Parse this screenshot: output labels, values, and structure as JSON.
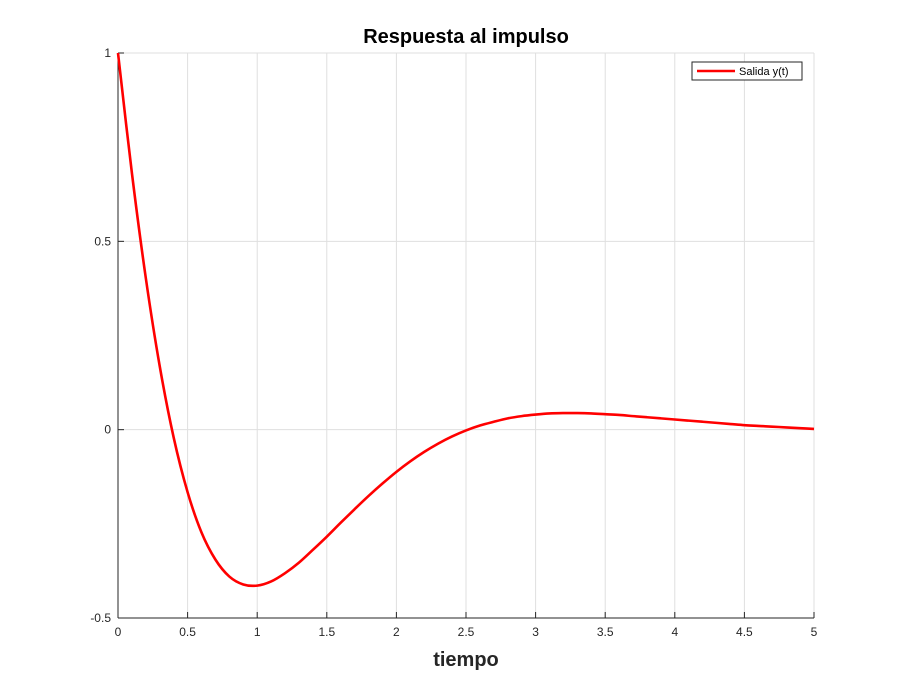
{
  "chart_data": {
    "type": "line",
    "title": "Respuesta al impulso",
    "xlabel": "tiempo",
    "ylabel": "",
    "xlim": [
      0,
      5
    ],
    "ylim": [
      -0.5,
      1
    ],
    "xticks": [
      0,
      0.5,
      1,
      1.5,
      2,
      2.5,
      3,
      3.5,
      4,
      4.5,
      5
    ],
    "xtick_labels": [
      "0",
      "0.5",
      "1",
      "1.5",
      "2",
      "2.5",
      "3",
      "3.5",
      "4",
      "4.5",
      "5"
    ],
    "yticks": [
      -0.5,
      0,
      0.5,
      1
    ],
    "ytick_labels": [
      "-0.5",
      "0",
      "0.5",
      "1"
    ],
    "grid": true,
    "legend_position": "top-right",
    "series": [
      {
        "name": "Salida y(t)",
        "color": "#ff0000",
        "x": [
          0,
          0.1,
          0.2,
          0.3,
          0.4,
          0.5,
          0.6,
          0.7,
          0.8,
          0.9,
          1.0,
          1.1,
          1.2,
          1.3,
          1.4,
          1.5,
          1.6,
          1.7,
          1.8,
          1.9,
          2.0,
          2.1,
          2.2,
          2.3,
          2.4,
          2.5,
          2.6,
          2.7,
          2.8,
          2.9,
          3.0,
          3.1,
          3.2,
          3.3,
          3.4,
          3.5,
          3.6,
          3.7,
          3.8,
          3.9,
          4.0,
          4.1,
          4.2,
          4.3,
          4.4,
          4.5,
          4.6,
          4.7,
          4.8,
          4.9,
          5.0
        ],
        "y": [
          1.0,
          0.681,
          0.402,
          0.168,
          -0.021,
          -0.166,
          -0.273,
          -0.345,
          -0.39,
          -0.411,
          -0.414,
          -0.403,
          -0.381,
          -0.353,
          -0.319,
          -0.284,
          -0.247,
          -0.211,
          -0.176,
          -0.143,
          -0.112,
          -0.084,
          -0.059,
          -0.037,
          -0.018,
          -0.002,
          0.011,
          0.021,
          0.03,
          0.036,
          0.04,
          0.043,
          0.044,
          0.044,
          0.043,
          0.041,
          0.039,
          0.036,
          0.033,
          0.03,
          0.027,
          0.024,
          0.021,
          0.018,
          0.015,
          0.012,
          0.01,
          0.008,
          0.006,
          0.004,
          0.002
        ]
      }
    ]
  }
}
